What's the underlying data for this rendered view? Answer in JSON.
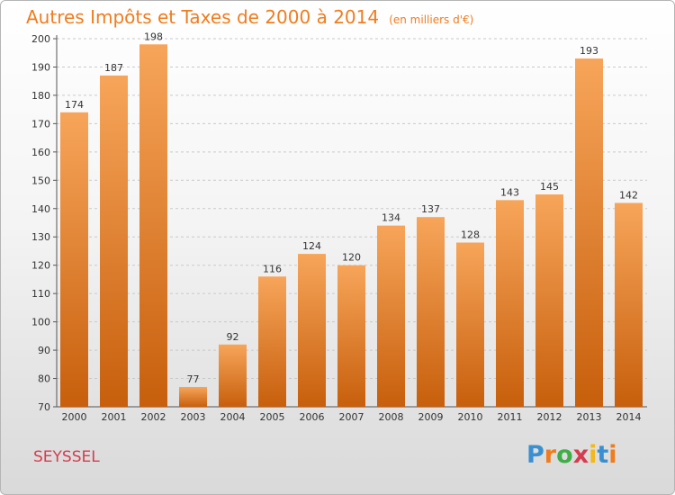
{
  "title": "Autres Impôts et Taxes de 2000 à 2014",
  "subtitle": "(en milliers d'€)",
  "commune": "SEYSSEL",
  "logo": {
    "text": "Proxiti",
    "letter_colors": [
      "#3a8fd1",
      "#f07c1e",
      "#3fae49",
      "#d43d4e",
      "#f2b81c",
      "#3a8fd1",
      "#f07c1e"
    ]
  },
  "colors": {
    "bar_top": "#f7a55a",
    "bar_bottom": "#c75f0c",
    "title": "#f07c1e",
    "commune": "#d43d4e"
  },
  "chart_data": {
    "type": "bar",
    "title": "Autres Impôts et Taxes de 2000 à 2014",
    "subtitle": "(en milliers d'€)",
    "categories": [
      "2000",
      "2001",
      "2002",
      "2003",
      "2004",
      "2005",
      "2006",
      "2007",
      "2008",
      "2009",
      "2010",
      "2011",
      "2012",
      "2013",
      "2014"
    ],
    "values": [
      174,
      187,
      198,
      77,
      92,
      116,
      124,
      120,
      134,
      137,
      128,
      143,
      145,
      193,
      142
    ],
    "ylim": [
      70,
      200
    ],
    "yticks": [
      70,
      80,
      90,
      100,
      110,
      120,
      130,
      140,
      150,
      160,
      170,
      180,
      190,
      200
    ],
    "grid": true,
    "data_labels": true
  }
}
